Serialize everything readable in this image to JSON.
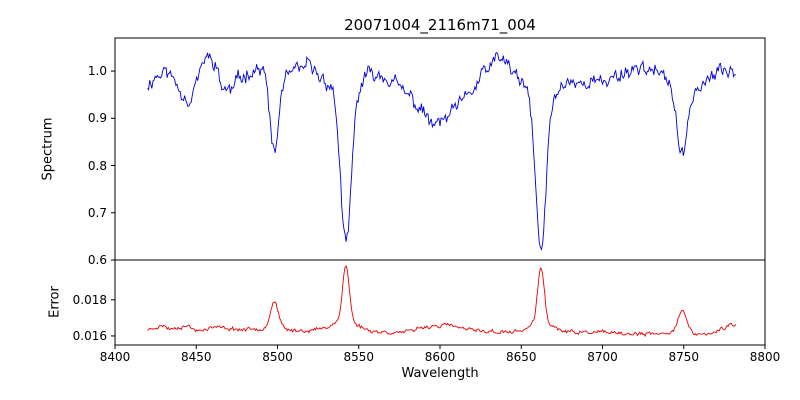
{
  "chart_data": {
    "type": "line",
    "title": "20071004_2116m71_004",
    "xlabel": "Wavelength",
    "grid": false,
    "legend": null,
    "x_range": [
      8400,
      8800
    ],
    "data_x_range": [
      8420,
      8782
    ],
    "x_tick_values": [
      8400,
      8450,
      8500,
      8550,
      8600,
      8650,
      8700,
      8750,
      8800
    ],
    "x_tick_labels": [
      "8400",
      "8450",
      "8500",
      "8550",
      "8600",
      "8650",
      "8700",
      "8750",
      "8800"
    ],
    "absorption_features": [
      {
        "center": 8498,
        "min_flux": 0.82
      },
      {
        "center": 8542,
        "min_flux": 0.63
      },
      {
        "center": 8600,
        "min_flux": 0.88
      },
      {
        "center": 8662,
        "min_flux": 0.62
      },
      {
        "center": 8750,
        "min_flux": 0.81
      }
    ],
    "panels": [
      {
        "name": "spectrum",
        "ylabel": "Spectrum",
        "color": "#0000dd",
        "ylim": [
          0.6,
          1.07
        ],
        "ytick_values": [
          0.6,
          0.7,
          0.8,
          0.9,
          1.0
        ],
        "ytick_labels": [
          "0.6",
          "0.7",
          "0.8",
          "0.9",
          "1.0"
        ],
        "model": {
          "seed": 11,
          "n_points": 540,
          "noise": 0.016,
          "continuum": [
            [
              8420,
              0.972
            ],
            [
              8426,
              0.99
            ],
            [
              8431,
              1.0
            ],
            [
              8436,
              0.985
            ],
            [
              8441,
              0.955
            ],
            [
              8446,
              0.935
            ],
            [
              8451,
              0.985
            ],
            [
              8456,
              1.03
            ],
            [
              8461,
              1.02
            ],
            [
              8466,
              0.965
            ],
            [
              8471,
              0.96
            ],
            [
              8477,
              0.985
            ],
            [
              8483,
              1.0
            ],
            [
              8490,
              1.005
            ],
            [
              8497,
              1.0
            ],
            [
              8505,
              0.99
            ],
            [
              8512,
              1.0
            ],
            [
              8519,
              1.015
            ],
            [
              8526,
              1.0
            ],
            [
              8533,
              1.0
            ],
            [
              8541,
              1.005
            ],
            [
              8549,
              1.0
            ],
            [
              8556,
              1.01
            ],
            [
              8564,
              0.995
            ],
            [
              8572,
              0.975
            ],
            [
              8580,
              0.95
            ],
            [
              8588,
              0.92
            ],
            [
              8596,
              0.885
            ],
            [
              8604,
              0.9
            ],
            [
              8612,
              0.93
            ],
            [
              8620,
              0.96
            ],
            [
              8628,
              1.0
            ],
            [
              8635,
              1.025
            ],
            [
              8639,
              1.03
            ],
            [
              8644,
              1.01
            ],
            [
              8650,
              0.995
            ],
            [
              8657,
              1.0
            ],
            [
              8665,
              1.0
            ],
            [
              8672,
              0.985
            ],
            [
              8679,
              0.99
            ],
            [
              8686,
              0.975
            ],
            [
              8693,
              0.98
            ],
            [
              8700,
              0.975
            ],
            [
              8708,
              0.99
            ],
            [
              8716,
              1.0
            ],
            [
              8724,
              1.01
            ],
            [
              8731,
              1.0
            ],
            [
              8738,
              0.985
            ],
            [
              8745,
              0.98
            ],
            [
              8752,
              0.975
            ],
            [
              8759,
              0.965
            ],
            [
              8766,
              0.985
            ],
            [
              8773,
              1.0
            ],
            [
              8779,
              1.0
            ],
            [
              8782,
              1.005
            ]
          ],
          "lines": [
            {
              "center": 8498.0,
              "amp": -0.175,
              "sigma": 2.6
            },
            {
              "center": 8542.1,
              "amp": -0.33,
              "sigma": 3.2
            },
            {
              "center": 8542.1,
              "amp": -0.045,
              "sigma": 10
            },
            {
              "center": 8662.1,
              "amp": -0.335,
              "sigma": 3.2
            },
            {
              "center": 8662.1,
              "amp": -0.045,
              "sigma": 10
            },
            {
              "center": 8749.0,
              "amp": -0.16,
              "sigma": 3.2
            }
          ]
        }
      },
      {
        "name": "error",
        "ylabel": "Error",
        "color": "#ee0000",
        "ylim": [
          0.0155,
          0.0202
        ],
        "ytick_values": [
          0.016,
          0.018
        ],
        "ytick_labels": [
          "0.016",
          "0.018"
        ],
        "model": {
          "seed": 23,
          "n_points": 540,
          "noise": 0.00011,
          "continuum": [
            [
              8420,
              0.01635
            ],
            [
              8426,
              0.0165
            ],
            [
              8430,
              0.01655
            ],
            [
              8434,
              0.0164
            ],
            [
              8440,
              0.0165
            ],
            [
              8445,
              0.01655
            ],
            [
              8450,
              0.0163
            ],
            [
              8456,
              0.0164
            ],
            [
              8462,
              0.0165
            ],
            [
              8466,
              0.01645
            ],
            [
              8472,
              0.0164
            ],
            [
              8478,
              0.01635
            ],
            [
              8486,
              0.0164
            ],
            [
              8494,
              0.0164
            ],
            [
              8502,
              0.0164
            ],
            [
              8510,
              0.0163
            ],
            [
              8518,
              0.0163
            ],
            [
              8526,
              0.01635
            ],
            [
              8534,
              0.0164
            ],
            [
              8542,
              0.0164
            ],
            [
              8550,
              0.0163
            ],
            [
              8558,
              0.01625
            ],
            [
              8566,
              0.0162
            ],
            [
              8574,
              0.0162
            ],
            [
              8582,
              0.01625
            ],
            [
              8590,
              0.0165
            ],
            [
              8598,
              0.01655
            ],
            [
              8606,
              0.0166
            ],
            [
              8614,
              0.0164
            ],
            [
              8622,
              0.0163
            ],
            [
              8630,
              0.01625
            ],
            [
              8638,
              0.0162
            ],
            [
              8646,
              0.0162
            ],
            [
              8654,
              0.0162
            ],
            [
              8662,
              0.0162
            ],
            [
              8670,
              0.01625
            ],
            [
              8678,
              0.0162
            ],
            [
              8686,
              0.0162
            ],
            [
              8694,
              0.0162
            ],
            [
              8702,
              0.0162
            ],
            [
              8710,
              0.0161
            ],
            [
              8718,
              0.0161
            ],
            [
              8726,
              0.0161
            ],
            [
              8734,
              0.0161
            ],
            [
              8742,
              0.0162
            ],
            [
              8750,
              0.0162
            ],
            [
              8758,
              0.0161
            ],
            [
              8766,
              0.0161
            ],
            [
              8774,
              0.0164
            ],
            [
              8779,
              0.0167
            ],
            [
              8782,
              0.0166
            ]
          ],
          "lines": [
            {
              "center": 8498.0,
              "amp": 0.0015,
              "sigma": 2.4
            },
            {
              "center": 8542.1,
              "amp": 0.003,
              "sigma": 2.0
            },
            {
              "center": 8542.1,
              "amp": 0.0005,
              "sigma": 7
            },
            {
              "center": 8662.1,
              "amp": 0.0031,
              "sigma": 2.0
            },
            {
              "center": 8662.1,
              "amp": 0.0005,
              "sigma": 7
            },
            {
              "center": 8749.0,
              "amp": 0.0012,
              "sigma": 2.6
            }
          ]
        }
      }
    ]
  }
}
